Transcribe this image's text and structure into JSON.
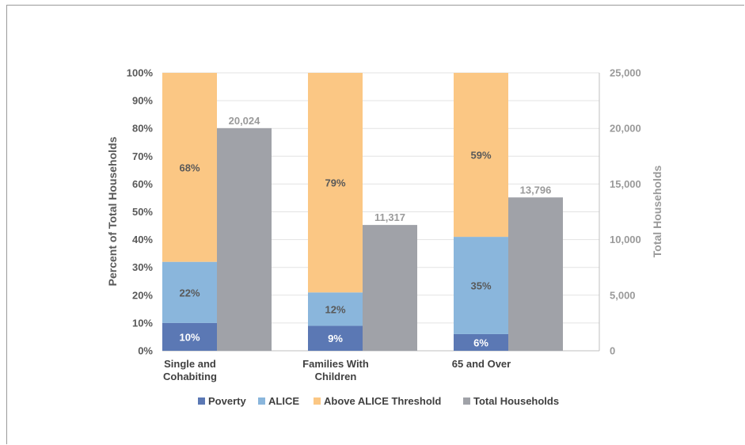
{
  "chart_data": {
    "type": "bar",
    "categories": [
      "Single and Cohabiting",
      "Families With Children",
      "65 and Over"
    ],
    "category_lines": [
      [
        "Single and",
        "Cohabiting"
      ],
      [
        "Families With",
        "Children"
      ],
      [
        "65 and Over"
      ]
    ],
    "stacked_series": [
      {
        "name": "Poverty",
        "color": "#5b78b4",
        "label_color": "#ffffff",
        "values": [
          10,
          9,
          6
        ],
        "labels": [
          "10%",
          "9%",
          "6%"
        ]
      },
      {
        "name": "ALICE",
        "color": "#8ab6dc",
        "label_color": "#595959",
        "values": [
          22,
          12,
          35
        ],
        "labels": [
          "22%",
          "12%",
          "35%"
        ]
      },
      {
        "name": "Above ALICE Threshold",
        "color": "#fbc784",
        "label_color": "#595959",
        "values": [
          68,
          79,
          59
        ],
        "labels": [
          "68%",
          "79%",
          "59%"
        ]
      }
    ],
    "total_series": {
      "name": "Total Households",
      "color": "#a0a2a8",
      "values": [
        20024,
        11317,
        13796
      ],
      "labels": [
        "20,024",
        "11,317",
        "13,796"
      ]
    },
    "y_left": {
      "label": "Percent of Total Households",
      "range": [
        0,
        100
      ],
      "ticks": [
        "0%",
        "10%",
        "20%",
        "30%",
        "40%",
        "50%",
        "60%",
        "70%",
        "80%",
        "90%",
        "100%"
      ]
    },
    "y_right": {
      "label": "Total Households",
      "range": [
        0,
        25000
      ],
      "ticks": [
        "0",
        "5,000",
        "10,000",
        "15,000",
        "20,000",
        "25,000"
      ]
    },
    "grid": true,
    "legend": "bottom"
  }
}
